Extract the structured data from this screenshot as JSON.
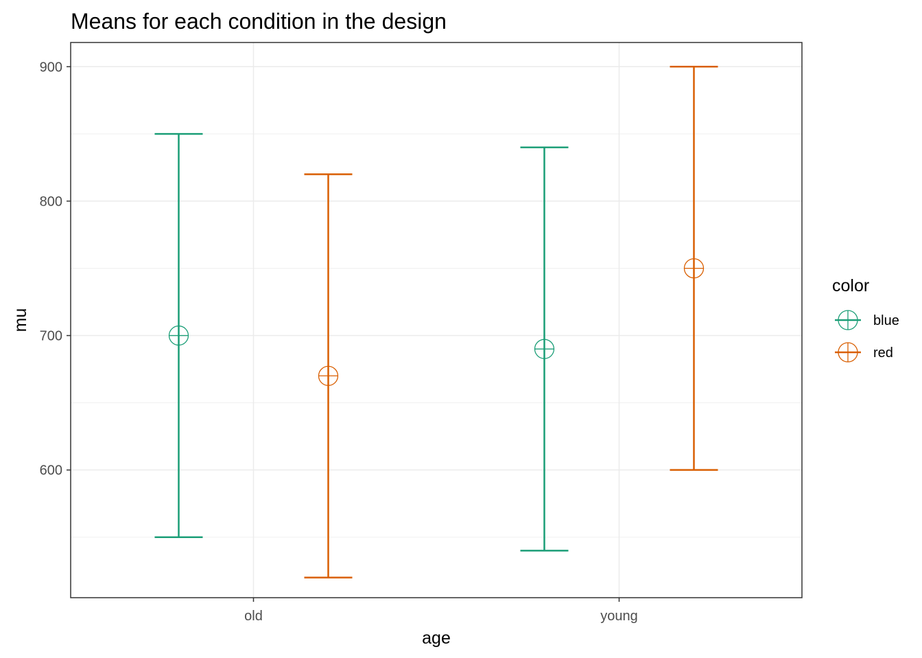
{
  "chart_data": {
    "type": "errorbar",
    "title": "Means for each condition in the design",
    "xlabel": "age",
    "ylabel": "mu",
    "categories": [
      "old",
      "young"
    ],
    "ylim": [
      505,
      918
    ],
    "yticks": [
      600,
      700,
      800,
      900
    ],
    "grid": true,
    "legend": {
      "title": "color",
      "placement": "right"
    },
    "series": [
      {
        "name": "blue",
        "color": "#1b9e77",
        "means": [
          700,
          690
        ],
        "lower": [
          550,
          540
        ],
        "upper": [
          850,
          840
        ]
      },
      {
        "name": "red",
        "color": "#d95f02",
        "means": [
          670,
          750
        ],
        "lower": [
          520,
          600
        ],
        "upper": [
          820,
          900
        ]
      }
    ]
  }
}
